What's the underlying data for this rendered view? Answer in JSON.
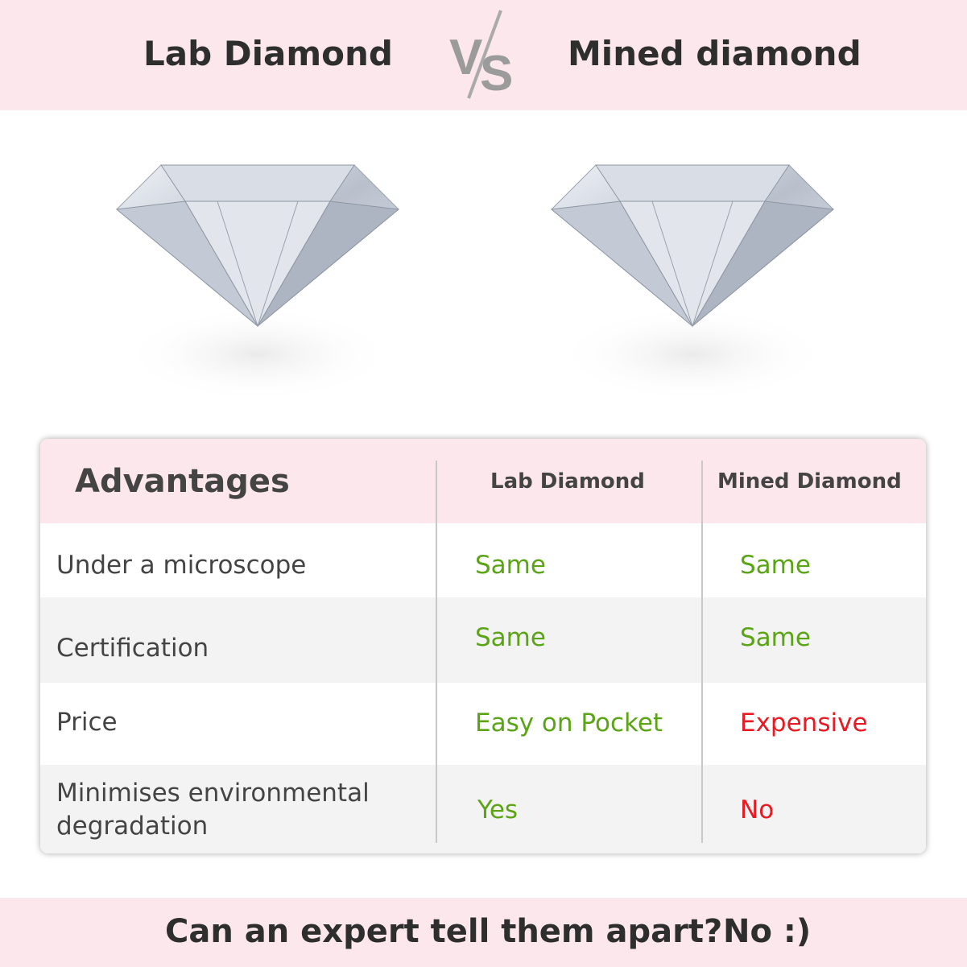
{
  "header": {
    "left_title": "Lab Diamond",
    "vs_logo": "VS",
    "right_title": "Mined diamond",
    "background": "#fce8ec"
  },
  "images": {
    "left": "diamond-image",
    "right": "diamond-image"
  },
  "table": {
    "headers": [
      "Advantages",
      "Lab Diamond",
      "Mined Diamond"
    ],
    "rows": [
      {
        "label": "Under a microscope",
        "lab": "Same",
        "mined": "Same"
      },
      {
        "label": "Certification",
        "lab": "Same",
        "mined": "Same"
      },
      {
        "label": "Price",
        "lab": "Easy on Pocket",
        "mined": "Expensive"
      },
      {
        "label_line1": "Minimises environmental",
        "label_line2": "degradation",
        "lab": "Yes",
        "mined": "No"
      }
    ],
    "colors": {
      "positive": "#5aa415",
      "negative": "#e81a24",
      "header_bg": "#fce8ec",
      "alt_row": "#f3f3f3"
    }
  },
  "footer": {
    "question": "Can an expert tell them apart?",
    "answer": "No :)"
  }
}
